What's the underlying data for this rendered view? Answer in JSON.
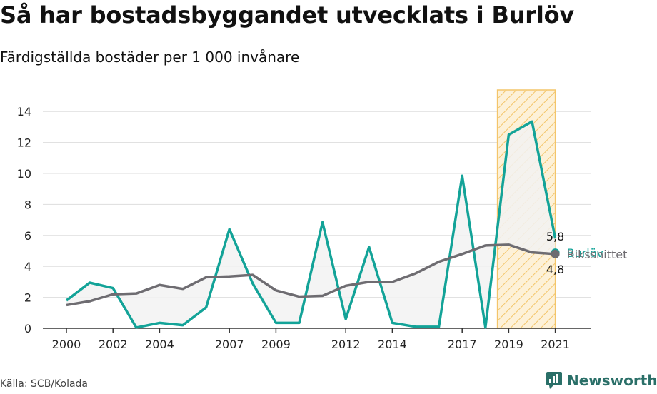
{
  "header": {
    "title": "Så har bostadsbyggandet utvecklats i Burlöv",
    "subtitle": "Färdigställda bostäder per 1 000 invånare"
  },
  "footer": {
    "source": "Källa: SCB/Kolada",
    "brand": "Newsworthy"
  },
  "colors": {
    "burlov": "#13a398",
    "riks": "#6e6c71",
    "highlight_stroke": "#f3c56a",
    "highlight_fill": "#fdf1d8",
    "area_fill": "#f2f2f2"
  },
  "chart_data": {
    "type": "line",
    "x": [
      2000,
      2001,
      2002,
      2003,
      2004,
      2005,
      2006,
      2007,
      2008,
      2009,
      2010,
      2011,
      2012,
      2013,
      2014,
      2015,
      2016,
      2017,
      2018,
      2019,
      2020,
      2021
    ],
    "series": [
      {
        "name": "Burlöv",
        "values": [
          1.8,
          2.95,
          2.6,
          0.05,
          0.35,
          0.2,
          1.35,
          6.4,
          2.9,
          0.35,
          0.35,
          6.85,
          0.6,
          5.25,
          0.35,
          0.1,
          0.1,
          9.85,
          0.05,
          12.5,
          13.35,
          5.8
        ],
        "end_label": "5,8"
      },
      {
        "name": "Rikssnittet",
        "values": [
          1.5,
          1.75,
          2.2,
          2.25,
          2.8,
          2.55,
          3.3,
          3.35,
          3.45,
          2.45,
          2.05,
          2.1,
          2.75,
          3.0,
          3.0,
          3.55,
          4.3,
          4.8,
          5.35,
          5.4,
          4.9,
          4.8
        ],
        "end_label": "4,8"
      }
    ],
    "x_ticks": [
      "2000",
      "2002",
      "2004",
      "2007",
      "2009",
      "2012",
      "2014",
      "2017",
      "2019",
      "2021"
    ],
    "y_ticks": [
      "0",
      "2",
      "4",
      "6",
      "8",
      "10",
      "12",
      "14"
    ],
    "ylim": [
      0,
      14
    ],
    "highlight_range": [
      2019,
      2021
    ],
    "grid": true
  }
}
